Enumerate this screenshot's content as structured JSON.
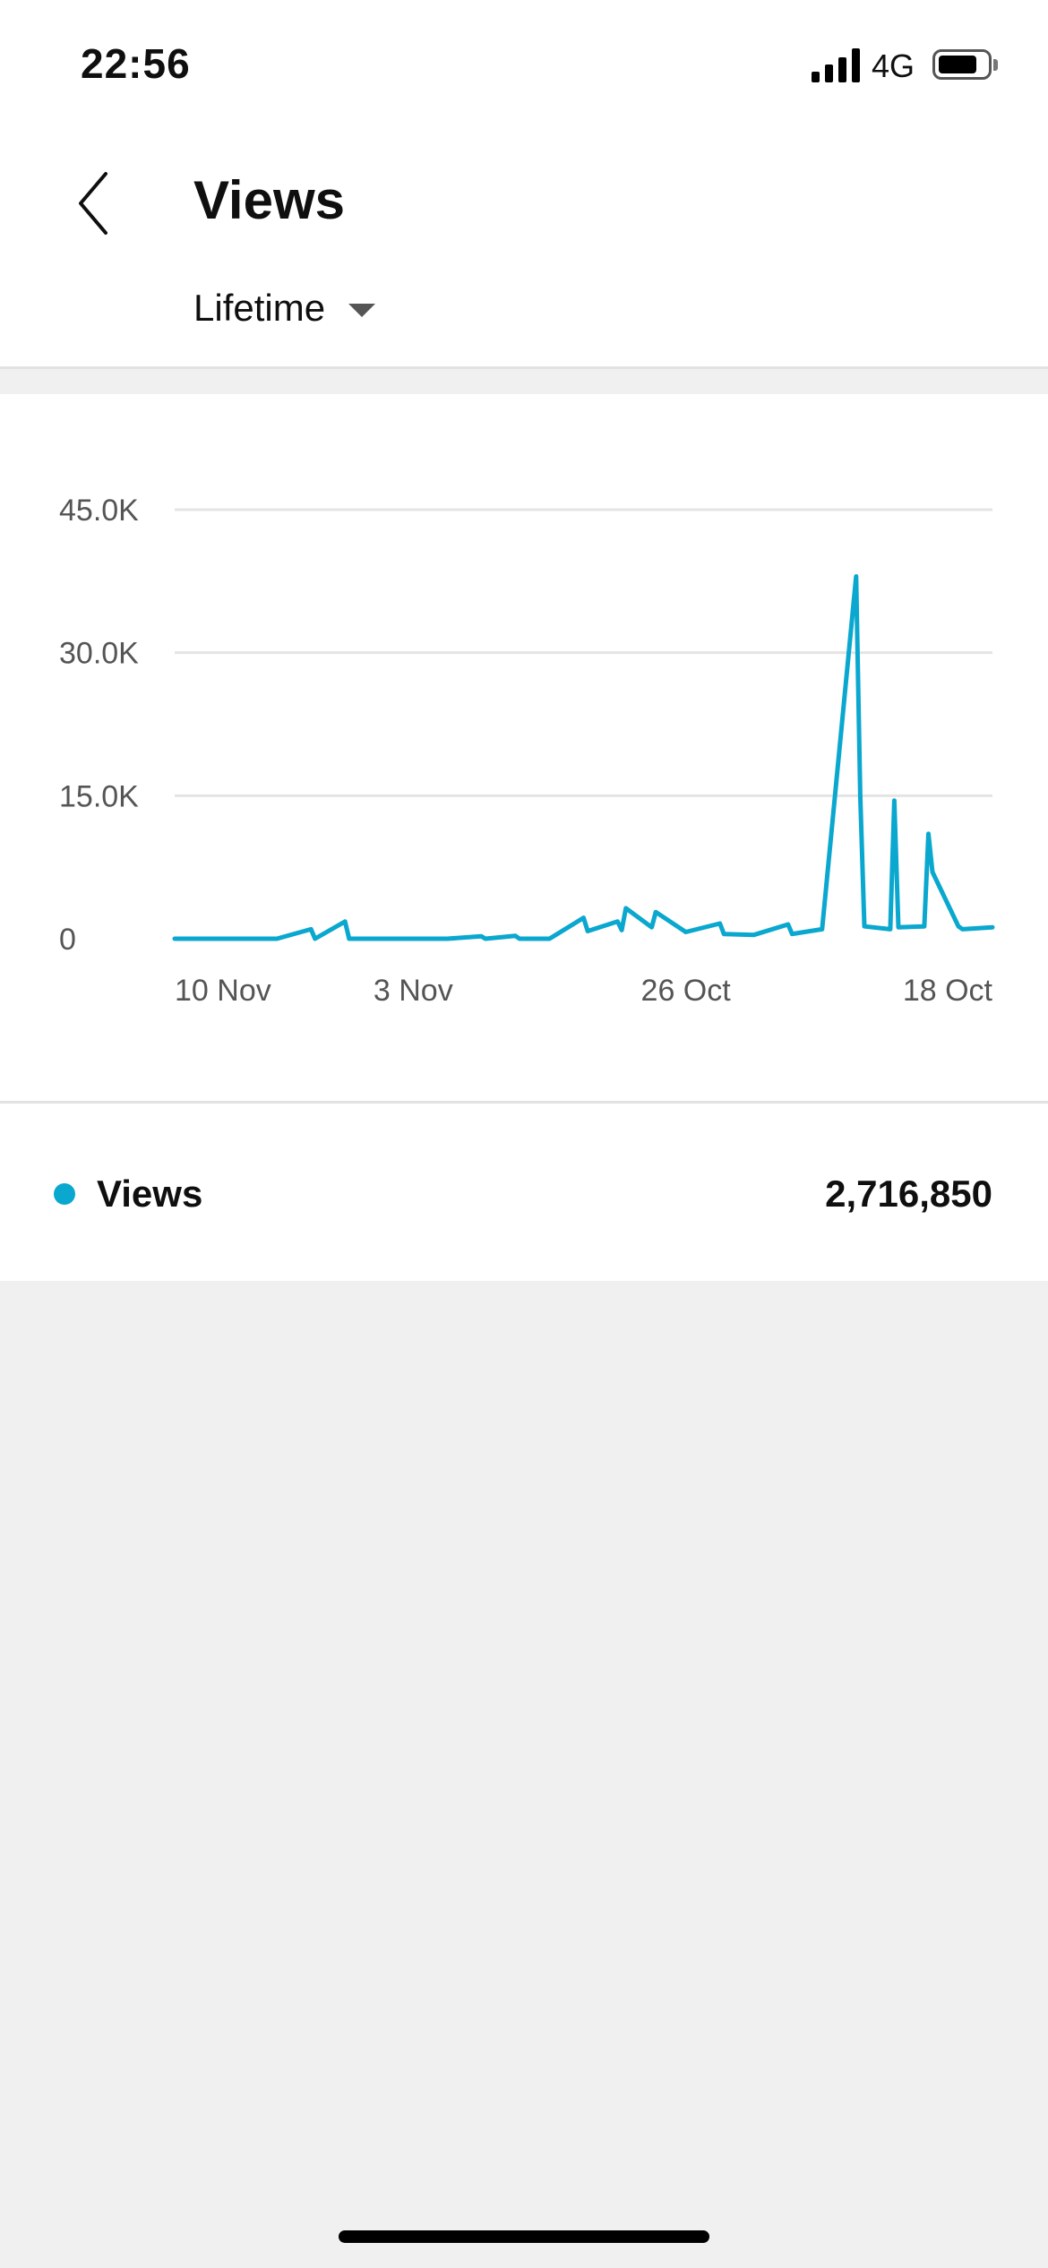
{
  "status_bar": {
    "time": "22:56",
    "network": "4G",
    "signal_bars": 4,
    "battery_level": 0.8
  },
  "header": {
    "title": "Views",
    "period": "Lifetime",
    "back_icon": "chevron-left-icon",
    "dropdown_icon": "caret-down-icon"
  },
  "colors": {
    "accent": "#0aa7cf",
    "gridline": "#e4e4e4",
    "background": "#f0f0f0"
  },
  "chart_data": {
    "type": "line",
    "title": "",
    "xlabel": "",
    "ylabel": "",
    "y_tick_labels": [
      "0",
      "15.0K",
      "30.0K",
      "45.0K"
    ],
    "y_ticks": [
      0,
      15000,
      30000,
      45000
    ],
    "ylim": [
      0,
      45000
    ],
    "x_tick_labels": [
      "10 Nov",
      "3 Nov",
      "26 Oct",
      "18 Oct"
    ],
    "x_ticks": [
      "2022-11-10",
      "2022-11-03",
      "2022-10-26",
      "2022-10-18"
    ],
    "x_axis_direction": "reversed",
    "xlim": [
      "2022-11-10",
      "2022-10-17"
    ],
    "grid": true,
    "legend": "below",
    "series": [
      {
        "name": "Views",
        "color": "#0aa7cf",
        "points": [
          [
            "2022-11-10",
            0
          ],
          [
            "2022-11-07",
            0
          ],
          [
            "2022-11-06",
            1000
          ],
          [
            "2022-11-06",
            0
          ],
          [
            "2022-11-05",
            1800
          ],
          [
            "2022-11-05",
            0
          ],
          [
            "2022-11-02",
            0
          ],
          [
            "2022-11-01",
            250
          ],
          [
            "2022-11-01",
            0
          ],
          [
            "2022-10-31",
            300
          ],
          [
            "2022-10-31",
            0
          ],
          [
            "2022-10-30",
            0
          ],
          [
            "2022-10-29",
            2200
          ],
          [
            "2022-10-29",
            800
          ],
          [
            "2022-10-28",
            1800
          ],
          [
            "2022-10-28",
            900
          ],
          [
            "2022-10-28",
            3200
          ],
          [
            "2022-10-27",
            1200
          ],
          [
            "2022-10-27",
            2800
          ],
          [
            "2022-10-26",
            700
          ],
          [
            "2022-10-25",
            1600
          ],
          [
            "2022-10-25",
            500
          ],
          [
            "2022-10-24",
            400
          ],
          [
            "2022-10-23",
            1500
          ],
          [
            "2022-10-23",
            500
          ],
          [
            "2022-10-22",
            1000
          ],
          [
            "2022-10-21",
            38000
          ],
          [
            "2022-10-21",
            15000
          ],
          [
            "2022-10-21",
            1300
          ],
          [
            "2022-10-20",
            1000
          ],
          [
            "2022-10-20",
            14500
          ],
          [
            "2022-10-20",
            1200
          ],
          [
            "2022-10-19",
            1300
          ],
          [
            "2022-10-19",
            11000
          ],
          [
            "2022-10-19",
            7000
          ],
          [
            "2022-10-18",
            1300
          ],
          [
            "2022-10-18",
            1000
          ],
          [
            "2022-10-17",
            1200
          ]
        ]
      }
    ]
  },
  "legend": {
    "label": "Views",
    "total": "2,716,850"
  }
}
